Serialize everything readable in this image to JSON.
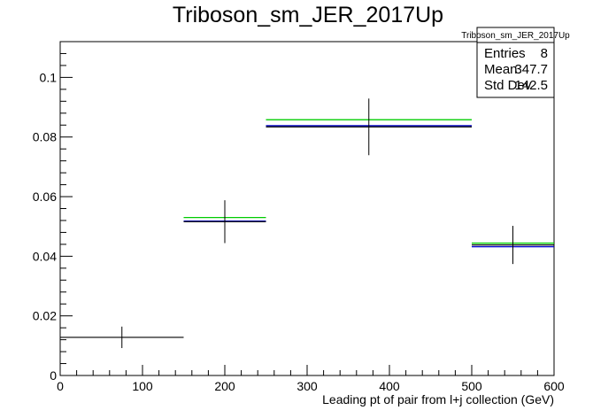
{
  "chart_data": {
    "type": "scatter",
    "title": "Triboson_sm_JER_2017Up",
    "xlabel": "Leading pt of pair from l+j collection (GeV)",
    "ylabel": "",
    "xlim": [
      0,
      600
    ],
    "ylim": [
      0,
      0.112
    ],
    "x_ticks": [
      0,
      100,
      200,
      300,
      400,
      500,
      600
    ],
    "y_ticks": [
      0,
      0.02,
      0.04,
      0.06,
      0.08,
      0.1
    ],
    "x_tick_labels": [
      "0",
      "100",
      "200",
      "300",
      "400",
      "500",
      "600"
    ],
    "y_tick_labels": [
      "0",
      "0.02",
      "0.04",
      "0.06",
      "0.08",
      "0.1"
    ],
    "grid": false,
    "bins": [
      {
        "xlow": 0,
        "xhigh": 150,
        "xcenter": 75,
        "y": 0.0128,
        "err": 0.0036
      },
      {
        "xlow": 150,
        "xhigh": 250,
        "xcenter": 200,
        "y": 0.0516,
        "err": 0.0072
      },
      {
        "xlow": 250,
        "xhigh": 500,
        "xcenter": 375,
        "y": 0.0834,
        "err": 0.0095
      },
      {
        "xlow": 500,
        "xhigh": 600,
        "xcenter": 550,
        "y": 0.0438,
        "err": 0.0064
      }
    ],
    "series": [
      {
        "color": "#00cc00",
        "segments": [
          {
            "xlow": 150,
            "xhigh": 250,
            "y": 0.053
          },
          {
            "xlow": 250,
            "xhigh": 500,
            "y": 0.0858
          },
          {
            "xlow": 500,
            "xhigh": 600,
            "y": 0.0444
          }
        ]
      },
      {
        "color": "#0000cc",
        "segments": [
          {
            "xlow": 150,
            "xhigh": 250,
            "y": 0.0518
          },
          {
            "xlow": 250,
            "xhigh": 500,
            "y": 0.0838
          },
          {
            "xlow": 500,
            "xhigh": 600,
            "y": 0.0432
          }
        ]
      }
    ],
    "stats_box": {
      "name": "Triboson_sm_JER_2017Up",
      "rows": [
        {
          "label": "Entries",
          "value": "8"
        },
        {
          "label": "Mean",
          "value": "347.7"
        },
        {
          "label": "Std Dev",
          "value": "142.5"
        }
      ]
    }
  }
}
